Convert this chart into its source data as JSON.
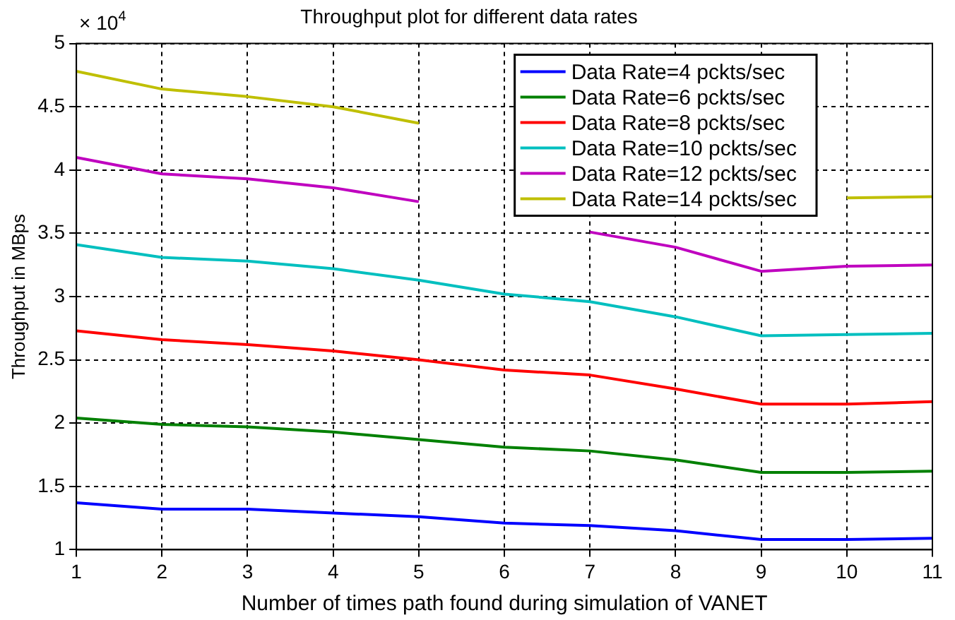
{
  "chart_data": {
    "type": "line",
    "title": "Throughput plot for different data rates",
    "xlabel": "Number of times path found during simulation of VANET",
    "ylabel": "Throughput in MBps",
    "annotations": [
      "× 10$^{4}$"
    ],
    "x": [
      1,
      2,
      3,
      4,
      5,
      6,
      7,
      8,
      9,
      10,
      11
    ],
    "xlim": [
      1,
      11
    ],
    "xticks": [
      1,
      2,
      3,
      4,
      5,
      6,
      7,
      8,
      9,
      10,
      11
    ],
    "ylim": [
      1,
      5
    ],
    "yticks": [
      1,
      1.5,
      2,
      2.5,
      3,
      3.5,
      4,
      4.5,
      5
    ],
    "grid": true,
    "legend": "top right",
    "marker": "none",
    "line_style": "solid",
    "series": [
      {
        "name": "Data Rate=4 pckts/sec",
        "color": "#0000ff",
        "values": [
          1.37,
          1.32,
          1.32,
          1.29,
          1.26,
          1.21,
          1.19,
          1.15,
          1.08,
          1.08,
          1.09
        ]
      },
      {
        "name": "Data Rate=6 pckts/sec",
        "color": "#008000",
        "values": [
          2.04,
          1.99,
          1.97,
          1.93,
          1.87,
          1.81,
          1.78,
          1.71,
          1.61,
          1.61,
          1.62
        ]
      },
      {
        "name": "Data Rate=8 pckts/sec",
        "color": "#ff0000",
        "values": [
          2.73,
          2.66,
          2.62,
          2.57,
          2.5,
          2.42,
          2.38,
          2.27,
          2.15,
          2.15,
          2.17
        ]
      },
      {
        "name": "Data Rate=10 pckts/sec",
        "color": "#00bfbf",
        "values": [
          3.41,
          3.31,
          3.28,
          3.22,
          3.13,
          3.02,
          2.96,
          2.84,
          2.69,
          2.7,
          2.71
        ]
      },
      {
        "name": "Data Rate=12 pckts/sec",
        "color": "#bf00bf",
        "values": [
          4.1,
          3.97,
          3.93,
          3.86,
          3.75,
          null,
          3.51,
          3.39,
          3.2,
          3.24,
          3.25
        ]
      },
      {
        "name": "Data Rate=14 pckts/sec",
        "color": "#bfbf00",
        "values": [
          4.78,
          4.64,
          4.58,
          4.5,
          4.37,
          null,
          null,
          null,
          null,
          3.78,
          3.79
        ]
      }
    ]
  }
}
